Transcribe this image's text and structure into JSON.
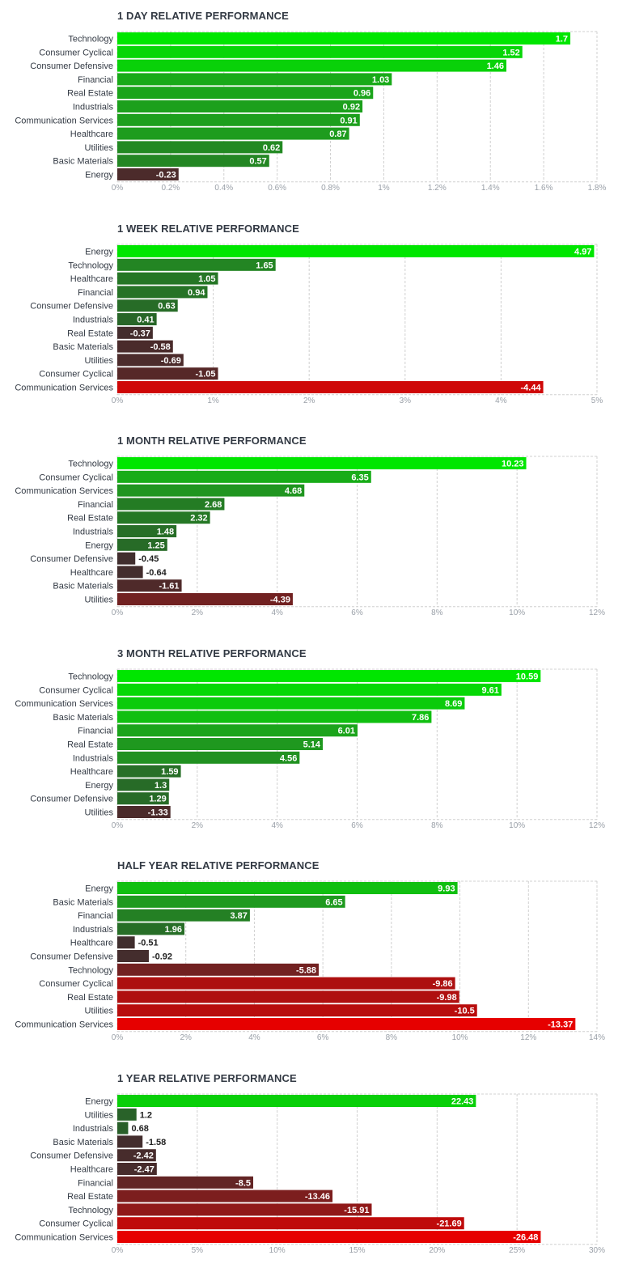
{
  "chart_data": [
    {
      "type": "bar",
      "title": "1 DAY RELATIVE PERFORMANCE",
      "categories": [
        "Technology",
        "Consumer Cyclical",
        "Consumer Defensive",
        "Financial",
        "Real Estate",
        "Industrials",
        "Communication Services",
        "Healthcare",
        "Utilities",
        "Basic Materials",
        "Energy"
      ],
      "values": [
        1.7,
        1.52,
        1.46,
        1.03,
        0.96,
        0.92,
        0.91,
        0.87,
        0.62,
        0.57,
        -0.23
      ],
      "value_labels": [
        "1.7",
        "1.52",
        "1.46",
        "1.03",
        "0.96",
        "0.92",
        "0.91",
        "0.87",
        "0.62",
        "0.57",
        "-0.23"
      ],
      "xlim": [
        0,
        1.8
      ],
      "ticks": [
        "0%",
        "0.2%",
        "0.4%",
        "0.6%",
        "0.8%",
        "1%",
        "1.2%",
        "1.4%",
        "1.6%",
        "1.8%"
      ],
      "grid": true
    },
    {
      "type": "bar",
      "title": "1 WEEK RELATIVE PERFORMANCE",
      "categories": [
        "Energy",
        "Technology",
        "Healthcare",
        "Financial",
        "Consumer Defensive",
        "Industrials",
        "Real Estate",
        "Basic Materials",
        "Utilities",
        "Consumer Cyclical",
        "Communication Services"
      ],
      "values": [
        4.97,
        1.65,
        1.05,
        0.94,
        0.63,
        0.41,
        -0.37,
        -0.58,
        -0.69,
        -1.05,
        -4.44
      ],
      "value_labels": [
        "4.97",
        "1.65",
        "1.05",
        "0.94",
        "0.63",
        "0.41",
        "-0.37",
        "-0.58",
        "-0.69",
        "-1.05",
        "-4.44"
      ],
      "xlim": [
        0,
        5
      ],
      "ticks": [
        "0%",
        "1%",
        "2%",
        "3%",
        "4%",
        "5%"
      ],
      "grid": true
    },
    {
      "type": "bar",
      "title": "1 MONTH RELATIVE PERFORMANCE",
      "categories": [
        "Technology",
        "Consumer Cyclical",
        "Communication Services",
        "Financial",
        "Real Estate",
        "Industrials",
        "Energy",
        "Consumer Defensive",
        "Healthcare",
        "Basic Materials",
        "Utilities"
      ],
      "values": [
        10.23,
        6.35,
        4.68,
        2.68,
        2.32,
        1.48,
        1.25,
        -0.45,
        -0.64,
        -1.61,
        -4.39
      ],
      "value_labels": [
        "10.23",
        "6.35",
        "4.68",
        "2.68",
        "2.32",
        "1.48",
        "1.25",
        "-0.45",
        "-0.64",
        "-1.61",
        "-4.39"
      ],
      "xlim": [
        0,
        12
      ],
      "ticks": [
        "0%",
        "2%",
        "4%",
        "6%",
        "8%",
        "10%",
        "12%"
      ],
      "grid": true
    },
    {
      "type": "bar",
      "title": "3 MONTH RELATIVE PERFORMANCE",
      "categories": [
        "Technology",
        "Consumer Cyclical",
        "Communication Services",
        "Basic Materials",
        "Financial",
        "Real Estate",
        "Industrials",
        "Healthcare",
        "Energy",
        "Consumer Defensive",
        "Utilities"
      ],
      "values": [
        10.59,
        9.61,
        8.69,
        7.86,
        6.01,
        5.14,
        4.56,
        1.59,
        1.3,
        1.29,
        -1.33
      ],
      "value_labels": [
        "10.59",
        "9.61",
        "8.69",
        "7.86",
        "6.01",
        "5.14",
        "4.56",
        "1.59",
        "1.3",
        "1.29",
        "-1.33"
      ],
      "xlim": [
        0,
        12
      ],
      "ticks": [
        "0%",
        "2%",
        "4%",
        "6%",
        "8%",
        "10%",
        "12%"
      ],
      "grid": true
    },
    {
      "type": "bar",
      "title": "HALF YEAR RELATIVE PERFORMANCE",
      "categories": [
        "Energy",
        "Basic Materials",
        "Financial",
        "Industrials",
        "Healthcare",
        "Consumer Defensive",
        "Technology",
        "Consumer Cyclical",
        "Real Estate",
        "Utilities",
        "Communication Services"
      ],
      "values": [
        9.93,
        6.65,
        3.87,
        1.96,
        -0.51,
        -0.92,
        -5.88,
        -9.86,
        -9.98,
        -10.5,
        -13.37
      ],
      "value_labels": [
        "9.93",
        "6.65",
        "3.87",
        "1.96",
        "-0.51",
        "-0.92",
        "-5.88",
        "-9.86",
        "-9.98",
        "-10.5",
        "-13.37"
      ],
      "xlim": [
        0,
        14
      ],
      "ticks": [
        "0%",
        "2%",
        "4%",
        "6%",
        "8%",
        "10%",
        "12%",
        "14%"
      ],
      "grid": true
    },
    {
      "type": "bar",
      "title": "1 YEAR RELATIVE PERFORMANCE",
      "categories": [
        "Energy",
        "Utilities",
        "Industrials",
        "Basic Materials",
        "Consumer Defensive",
        "Healthcare",
        "Financial",
        "Real Estate",
        "Technology",
        "Consumer Cyclical",
        "Communication Services"
      ],
      "values": [
        22.43,
        1.2,
        0.68,
        -1.58,
        -2.42,
        -2.47,
        -8.5,
        -13.46,
        -15.91,
        -21.69,
        -26.48
      ],
      "value_labels": [
        "22.43",
        "1.2",
        "0.68",
        "-1.58",
        "-2.42",
        "-2.47",
        "-8.5",
        "-13.46",
        "-15.91",
        "-21.69",
        "-26.48"
      ],
      "xlim": [
        0,
        30
      ],
      "ticks": [
        "0%",
        "5%",
        "10%",
        "15%",
        "20%",
        "25%",
        "30%"
      ],
      "grid": true
    }
  ],
  "colors": {
    "positive_strong": "#00e600",
    "positive_mid": "#1f9a1f",
    "positive_dark": "#2a5c2a",
    "neutral_dark": "#3b2f2f",
    "negative_mid": "#7a1f1f",
    "negative_strong": "#e60000",
    "grid": "#d0d0d0",
    "category_text": "#333a44",
    "tick_text": "#9aa0a8"
  }
}
